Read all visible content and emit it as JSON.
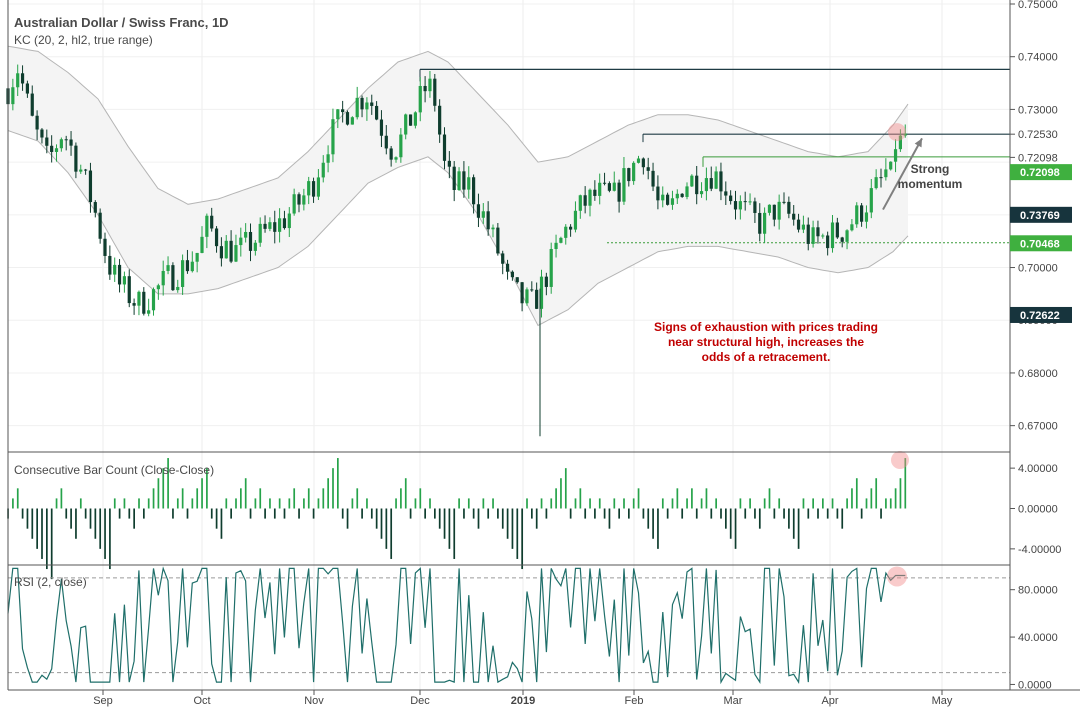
{
  "header": {
    "title": "Australian Dollar / Swiss Franc, 1D",
    "indicator": "KC (20, 2, hl2, true range)"
  },
  "panels": {
    "cbc_label": "Consecutive Bar Count (Close-Close)",
    "rsi_label": "RSI (2, close)"
  },
  "colors": {
    "up": "#26a34a",
    "down": "#0f3d2e",
    "channel_fill": "#f4f4f4",
    "channel_line": "#b5b5b5",
    "level_dark": "#1e3b44",
    "level_green": "#3a9b3a",
    "badge_dark": "#17343d",
    "badge_green": "#3fb03f",
    "annotation": "#c00000",
    "rsi_line": "#1f6f6a",
    "arrow": "#7f7f7f",
    "highlight": "#f28b8b"
  },
  "annotations": {
    "momentum": [
      "Strong",
      "momentum"
    ],
    "exhaustion": [
      "Signs of exhaustion with prices trading",
      "near structural high, increases the",
      "odds of a retracement."
    ]
  },
  "chart_data": {
    "type": "candlestick",
    "x_axis": {
      "ticks": [
        "Sep",
        "Oct",
        "Nov",
        "Dec",
        "2019",
        "Feb",
        "Mar",
        "Apr",
        "May"
      ]
    },
    "price_axis": {
      "range": [
        0.665,
        0.75
      ],
      "ticks": [
        "0.75000",
        "0.74000",
        "0.73000",
        "0.72530",
        "0.72098",
        "0.71000",
        "0.70000",
        "0.69000",
        "0.68000",
        "0.67000"
      ],
      "level_badges": [
        {
          "label": "0.72098",
          "value": 0.7181,
          "style": "green"
        },
        {
          "label": "0.73769",
          "value": 0.71,
          "style": "dark"
        },
        {
          "label": "0.70468",
          "value": 0.7046,
          "style": "green"
        },
        {
          "label": "0.72622",
          "value": 0.691,
          "style": "dark"
        }
      ]
    },
    "levels": [
      {
        "value": 0.7376,
        "style": "dark"
      },
      {
        "value": 0.7253,
        "style": "dark"
      },
      {
        "value": 0.721,
        "style": "green"
      },
      {
        "value": 0.7047,
        "style": "green-dotted"
      }
    ],
    "price_path": [
      [
        0,
        0.734
      ],
      [
        10,
        0.738
      ],
      [
        25,
        0.727
      ],
      [
        40,
        0.72
      ],
      [
        55,
        0.726
      ],
      [
        70,
        0.72
      ],
      [
        85,
        0.712
      ],
      [
        100,
        0.701
      ],
      [
        110,
        0.697
      ],
      [
        120,
        0.695
      ],
      [
        130,
        0.693
      ],
      [
        145,
        0.695
      ],
      [
        160,
        0.698
      ],
      [
        175,
        0.7
      ],
      [
        190,
        0.703
      ],
      [
        200,
        0.708
      ],
      [
        215,
        0.704
      ],
      [
        230,
        0.703
      ],
      [
        245,
        0.705
      ],
      [
        260,
        0.707
      ],
      [
        275,
        0.709
      ],
      [
        290,
        0.712
      ],
      [
        305,
        0.716
      ],
      [
        320,
        0.724
      ],
      [
        335,
        0.729
      ],
      [
        345,
        0.731
      ],
      [
        360,
        0.733
      ],
      [
        370,
        0.728
      ],
      [
        385,
        0.722
      ],
      [
        395,
        0.725
      ],
      [
        410,
        0.731
      ],
      [
        420,
        0.735
      ],
      [
        428,
        0.731
      ],
      [
        435,
        0.72
      ],
      [
        445,
        0.715
      ],
      [
        460,
        0.716
      ],
      [
        475,
        0.71
      ],
      [
        490,
        0.703
      ],
      [
        500,
        0.697
      ],
      [
        512,
        0.694
      ],
      [
        525,
        0.693
      ],
      [
        535,
        0.697
      ],
      [
        548,
        0.703
      ],
      [
        560,
        0.708
      ],
      [
        575,
        0.712
      ],
      [
        590,
        0.714
      ],
      [
        605,
        0.713
      ],
      [
        620,
        0.718
      ],
      [
        635,
        0.722
      ],
      [
        650,
        0.712
      ],
      [
        660,
        0.71
      ],
      [
        675,
        0.716
      ],
      [
        690,
        0.717
      ],
      [
        705,
        0.718
      ],
      [
        715,
        0.716
      ],
      [
        725,
        0.713
      ],
      [
        740,
        0.71
      ],
      [
        755,
        0.708
      ],
      [
        765,
        0.711
      ],
      [
        780,
        0.71
      ],
      [
        795,
        0.707
      ],
      [
        805,
        0.705
      ],
      [
        820,
        0.706
      ],
      [
        835,
        0.707
      ],
      [
        850,
        0.71
      ],
      [
        865,
        0.714
      ],
      [
        875,
        0.717
      ],
      [
        885,
        0.721
      ],
      [
        892,
        0.725
      ],
      [
        898,
        0.7255
      ]
    ],
    "keltner_upper_path": [
      [
        0,
        0.742
      ],
      [
        30,
        0.741
      ],
      [
        60,
        0.737
      ],
      [
        90,
        0.732
      ],
      [
        120,
        0.723
      ],
      [
        150,
        0.715
      ],
      [
        180,
        0.712
      ],
      [
        210,
        0.713
      ],
      [
        240,
        0.715
      ],
      [
        270,
        0.717
      ],
      [
        300,
        0.722
      ],
      [
        330,
        0.728
      ],
      [
        360,
        0.734
      ],
      [
        390,
        0.739
      ],
      [
        420,
        0.741
      ],
      [
        440,
        0.739
      ],
      [
        470,
        0.733
      ],
      [
        500,
        0.727
      ],
      [
        530,
        0.72
      ],
      [
        560,
        0.721
      ],
      [
        590,
        0.724
      ],
      [
        620,
        0.727
      ],
      [
        650,
        0.729
      ],
      [
        680,
        0.729
      ],
      [
        710,
        0.728
      ],
      [
        740,
        0.726
      ],
      [
        770,
        0.724
      ],
      [
        800,
        0.722
      ],
      [
        830,
        0.721
      ],
      [
        860,
        0.722
      ],
      [
        885,
        0.727
      ],
      [
        900,
        0.731
      ]
    ],
    "keltner_lower_path": [
      [
        0,
        0.726
      ],
      [
        30,
        0.724
      ],
      [
        60,
        0.718
      ],
      [
        90,
        0.71
      ],
      [
        120,
        0.7
      ],
      [
        150,
        0.695
      ],
      [
        180,
        0.695
      ],
      [
        210,
        0.696
      ],
      [
        240,
        0.698
      ],
      [
        270,
        0.7
      ],
      [
        300,
        0.704
      ],
      [
        330,
        0.71
      ],
      [
        360,
        0.716
      ],
      [
        390,
        0.719
      ],
      [
        420,
        0.721
      ],
      [
        440,
        0.718
      ],
      [
        470,
        0.71
      ],
      [
        500,
        0.7
      ],
      [
        530,
        0.689
      ],
      [
        560,
        0.692
      ],
      [
        590,
        0.697
      ],
      [
        620,
        0.7
      ],
      [
        650,
        0.703
      ],
      [
        680,
        0.704
      ],
      [
        710,
        0.704
      ],
      [
        740,
        0.703
      ],
      [
        770,
        0.702
      ],
      [
        800,
        0.7
      ],
      [
        830,
        0.699
      ],
      [
        860,
        0.7
      ],
      [
        885,
        0.703
      ],
      [
        900,
        0.706
      ]
    ],
    "spike_low": {
      "x": 532,
      "value": 0.668
    },
    "cbc": {
      "range": [
        -5.5,
        5.5
      ],
      "ticks": [
        "4.00000",
        "0.00000",
        "-4.00000"
      ],
      "tick_values": [
        4,
        0,
        -4
      ],
      "final_value": 5
    },
    "rsi": {
      "range": [
        -3,
        100
      ],
      "ticks": [
        "80.0000",
        "40.0000",
        "0.0000"
      ],
      "tick_values": [
        80,
        40,
        0
      ],
      "overbought": 90,
      "oversold": 10,
      "final_value": 92
    },
    "annotation_arrow": {
      "x1": 875,
      "y1": 0.711,
      "x2": 914,
      "y2": 0.7245
    }
  }
}
